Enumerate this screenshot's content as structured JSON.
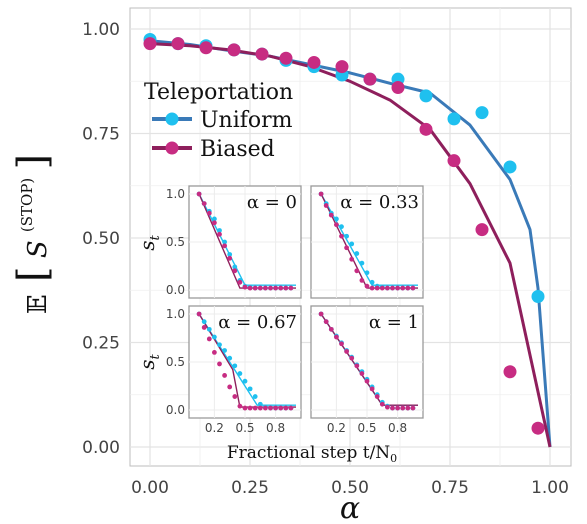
{
  "chart_data": {
    "type": "line",
    "main": {
      "xlabel": "α",
      "ylabel_prefix": "𝔼",
      "ylabel_symbol": "S",
      "ylabel_superscript": "(STOP)",
      "xlim": [
        0,
        1
      ],
      "ylim": [
        0,
        1
      ],
      "x_ticks": [
        "0.00",
        "0.25",
        "0.50",
        "0.75",
        "1.00"
      ],
      "y_ticks": [
        "0.00",
        "0.25",
        "0.50",
        "0.75",
        "1.00"
      ],
      "legend": {
        "title": "Teleportation",
        "placement": "top-left",
        "entries": [
          "Uniform",
          "Biased"
        ]
      },
      "grid": true,
      "series": [
        {
          "name": "Uniform",
          "color": "#3a7ab8",
          "point_color": "#1fc0ef",
          "line": {
            "x": [
              0.0,
              0.1,
              0.2,
              0.3,
              0.4,
              0.5,
              0.6,
              0.7,
              0.8,
              0.9,
              0.95,
              0.97,
              1.0
            ],
            "y": [
              0.972,
              0.963,
              0.948,
              0.935,
              0.915,
              0.895,
              0.87,
              0.847,
              0.77,
              0.64,
              0.52,
              0.38,
              0.0
            ]
          },
          "points": {
            "x": [
              0.0,
              0.07,
              0.14,
              0.21,
              0.28,
              0.34,
              0.41,
              0.48,
              0.55,
              0.62,
              0.69,
              0.76,
              0.83,
              0.9,
              0.97
            ],
            "y": [
              0.975,
              0.965,
              0.96,
              0.95,
              0.94,
              0.925,
              0.91,
              0.89,
              0.88,
              0.88,
              0.84,
              0.785,
              0.8,
              0.67,
              0.36
            ]
          }
        },
        {
          "name": "Biased",
          "color": "#8e1f5c",
          "point_color": "#c72c82",
          "line": {
            "x": [
              0.0,
              0.1,
              0.2,
              0.3,
              0.4,
              0.5,
              0.6,
              0.7,
              0.8,
              0.9,
              1.0
            ],
            "y": [
              0.965,
              0.96,
              0.95,
              0.935,
              0.91,
              0.875,
              0.83,
              0.76,
              0.63,
              0.44,
              0.0
            ]
          },
          "points": {
            "x": [
              0.0,
              0.07,
              0.14,
              0.21,
              0.28,
              0.34,
              0.41,
              0.48,
              0.55,
              0.62,
              0.69,
              0.76,
              0.83,
              0.9,
              0.97
            ],
            "y": [
              0.965,
              0.965,
              0.955,
              0.95,
              0.94,
              0.93,
              0.92,
              0.91,
              0.88,
              0.86,
              0.76,
              0.685,
              0.52,
              0.18,
              0.045
            ]
          }
        }
      ]
    },
    "insets": {
      "ylabel_symbol": "s",
      "ylabel_subscript": "t",
      "xlabel": "Fractional step t/N",
      "xlabel_subscript": "0",
      "xlim": [
        0,
        1
      ],
      "ylim": [
        0,
        1
      ],
      "x_ticks": [
        "0.2",
        "0.5",
        "0.8"
      ],
      "y_ticks": [
        "0.0",
        "0.5",
        "1.0"
      ],
      "panels": [
        {
          "label": "α = 0",
          "uniform_line": {
            "x": [
              0.05,
              0.5,
              1.0
            ],
            "y": [
              1.0,
              0.05,
              0.05
            ]
          },
          "biased_line": {
            "x": [
              0.05,
              0.45,
              1.0
            ],
            "y": [
              1.0,
              0.02,
              0.02
            ]
          },
          "uniform_points": {
            "x": [
              0.05,
              0.1,
              0.15,
              0.2,
              0.25,
              0.3,
              0.35,
              0.4,
              0.45,
              0.5,
              0.55,
              0.6,
              0.65,
              0.7,
              0.75,
              0.8,
              0.85,
              0.9,
              0.95
            ],
            "y": [
              1.0,
              0.9,
              0.82,
              0.74,
              0.62,
              0.5,
              0.37,
              0.24,
              0.1,
              0.04,
              0.03,
              0.02,
              0.02,
              0.02,
              0.02,
              0.02,
              0.02,
              0.02,
              0.02
            ]
          },
          "biased_points": {
            "x": [
              0.05,
              0.1,
              0.15,
              0.2,
              0.25,
              0.3,
              0.35,
              0.4,
              0.45,
              0.5,
              0.55,
              0.6,
              0.65,
              0.7,
              0.75,
              0.8,
              0.85,
              0.9,
              0.95
            ],
            "y": [
              1.0,
              0.9,
              0.8,
              0.7,
              0.58,
              0.46,
              0.33,
              0.2,
              0.08,
              0.03,
              0.02,
              0.02,
              0.02,
              0.02,
              0.02,
              0.02,
              0.02,
              0.02,
              0.02
            ]
          }
        },
        {
          "label": "α = 0.33",
          "uniform_line": {
            "x": [
              0.05,
              0.55,
              1.0
            ],
            "y": [
              1.0,
              0.05,
              0.05
            ]
          },
          "biased_line": {
            "x": [
              0.05,
              0.5,
              1.0
            ],
            "y": [
              1.0,
              0.02,
              0.02
            ]
          },
          "uniform_points": {
            "x": [
              0.05,
              0.1,
              0.15,
              0.2,
              0.25,
              0.3,
              0.35,
              0.4,
              0.45,
              0.5,
              0.55,
              0.6,
              0.65,
              0.7,
              0.75,
              0.8,
              0.85,
              0.9,
              0.95
            ],
            "y": [
              1.0,
              0.9,
              0.8,
              0.74,
              0.66,
              0.56,
              0.48,
              0.38,
              0.28,
              0.18,
              0.08,
              0.04,
              0.03,
              0.02,
              0.02,
              0.02,
              0.02,
              0.02,
              0.02
            ]
          },
          "biased_points": {
            "x": [
              0.05,
              0.1,
              0.15,
              0.2,
              0.25,
              0.3,
              0.35,
              0.4,
              0.45,
              0.5,
              0.55,
              0.6,
              0.65,
              0.7,
              0.75,
              0.8,
              0.85,
              0.9,
              0.95
            ],
            "y": [
              1.0,
              0.88,
              0.78,
              0.68,
              0.56,
              0.44,
              0.32,
              0.2,
              0.1,
              0.04,
              0.02,
              0.02,
              0.02,
              0.02,
              0.02,
              0.02,
              0.02,
              0.02,
              0.02
            ]
          }
        },
        {
          "label": "α = 0.67",
          "uniform_line": {
            "x": [
              0.05,
              0.62,
              1.0
            ],
            "y": [
              1.0,
              0.05,
              0.05
            ]
          },
          "biased_line": {
            "x": [
              0.05,
              0.38,
              0.45,
              1.0
            ],
            "y": [
              1.0,
              0.42,
              0.03,
              0.03
            ]
          },
          "uniform_points": {
            "x": [
              0.05,
              0.1,
              0.15,
              0.2,
              0.25,
              0.3,
              0.35,
              0.4,
              0.45,
              0.5,
              0.55,
              0.6,
              0.65,
              0.7,
              0.75,
              0.8,
              0.85,
              0.9,
              0.95
            ],
            "y": [
              1.0,
              0.92,
              0.84,
              0.76,
              0.68,
              0.62,
              0.54,
              0.46,
              0.38,
              0.3,
              0.22,
              0.14,
              0.06,
              0.03,
              0.02,
              0.02,
              0.02,
              0.02,
              0.02
            ]
          },
          "biased_points": {
            "x": [
              0.05,
              0.1,
              0.15,
              0.2,
              0.25,
              0.3,
              0.35,
              0.4,
              0.45,
              0.5,
              0.55,
              0.6,
              0.65,
              0.7,
              0.75,
              0.8,
              0.85,
              0.9,
              0.95
            ],
            "y": [
              1.0,
              0.86,
              0.74,
              0.6,
              0.48,
              0.36,
              0.24,
              0.14,
              0.04,
              0.02,
              0.02,
              0.02,
              0.02,
              0.02,
              0.02,
              0.02,
              0.02,
              0.02,
              0.02
            ]
          }
        },
        {
          "label": "α = 1",
          "uniform_line": {
            "x": [
              0.05,
              0.65,
              1.0
            ],
            "y": [
              1.0,
              0.05,
              0.05
            ]
          },
          "biased_line": {
            "x": [
              0.05,
              0.65,
              1.0
            ],
            "y": [
              1.0,
              0.05,
              0.05
            ]
          },
          "uniform_points": {
            "x": [
              0.05,
              0.1,
              0.15,
              0.2,
              0.25,
              0.3,
              0.35,
              0.4,
              0.45,
              0.5,
              0.55,
              0.6,
              0.65,
              0.7,
              0.75,
              0.8,
              0.85,
              0.9,
              0.95
            ],
            "y": [
              1.0,
              0.92,
              0.84,
              0.77,
              0.7,
              0.62,
              0.55,
              0.47,
              0.4,
              0.32,
              0.24,
              0.16,
              0.08,
              0.04,
              0.02,
              0.02,
              0.02,
              0.02,
              0.02
            ]
          },
          "biased_points": {
            "x": [
              0.05,
              0.1,
              0.15,
              0.2,
              0.25,
              0.3,
              0.35,
              0.4,
              0.45,
              0.5,
              0.55,
              0.6,
              0.65,
              0.7,
              0.75,
              0.8,
              0.85,
              0.9,
              0.95
            ],
            "y": [
              1.0,
              0.92,
              0.84,
              0.76,
              0.69,
              0.61,
              0.54,
              0.46,
              0.38,
              0.3,
              0.22,
              0.14,
              0.06,
              0.03,
              0.02,
              0.02,
              0.02,
              0.02,
              0.02
            ]
          }
        }
      ]
    }
  }
}
